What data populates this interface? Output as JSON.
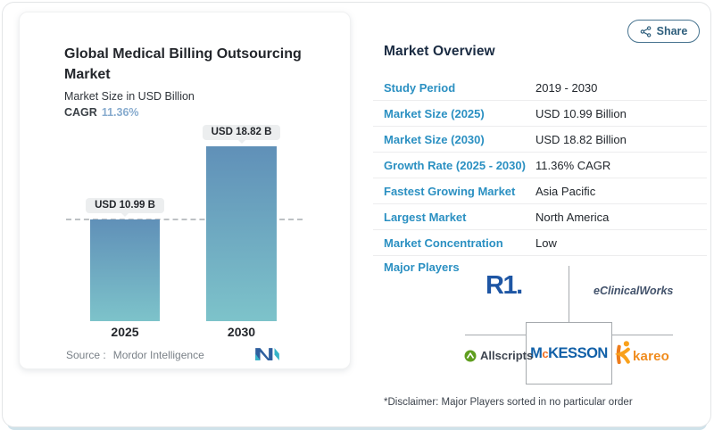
{
  "header": {
    "share_label": "Share"
  },
  "chart_card": {
    "title": "Global Medical Billing Outsourcing Market",
    "subtitle": "Market Size in USD Billion",
    "cagr_label": "CAGR",
    "source_label": "Source :",
    "source_name": "Mordor Intelligence"
  },
  "chart_data": {
    "type": "bar",
    "title": "Global Medical Billing Outsourcing Market",
    "ylabel": "Market Size in USD Billion",
    "cagr": "11.36%",
    "categories": [
      "2025",
      "2030"
    ],
    "values": [
      10.99,
      18.82
    ],
    "value_labels": [
      "USD 10.99 B",
      "USD 18.82 B"
    ],
    "reference_line": 10.99,
    "bar_color_top": "#6090b8",
    "bar_color_bottom": "#7dc3ca",
    "grid": "off",
    "legend": "none"
  },
  "overview": {
    "heading": "Market Overview",
    "rows": [
      {
        "label": "Study Period",
        "value": "2019 - 2030"
      },
      {
        "label": "Market Size (2025)",
        "value": "USD 10.99 Billion"
      },
      {
        "label": "Market Size (2030)",
        "value": "USD 18.82 Billion"
      },
      {
        "label": "Growth Rate (2025 - 2030)",
        "value": "11.36% CAGR"
      },
      {
        "label": "Fastest Growing Market",
        "value": "Asia Pacific"
      },
      {
        "label": "Largest Market",
        "value": "North America"
      },
      {
        "label": "Market Concentration",
        "value": "Low"
      }
    ],
    "major_players": {
      "label": "Major Players",
      "players": [
        "R1",
        "eClinicalWorks",
        "Allscripts",
        "McKesson",
        "Kareo"
      ],
      "logo_text": {
        "r1": "R1.",
        "eclinicalworks": "eClinicalWorks",
        "allscripts": "Allscripts",
        "mckesson_m": "M",
        "mckesson_c": "c",
        "mckesson_rest": "KESSON",
        "kareo": "kareo"
      },
      "disclaimer": "*Disclaimer: Major Players sorted in no particular order"
    }
  },
  "colors": {
    "link_blue": "#2b90c2",
    "heading_navy": "#1a2b42",
    "cagr_blue": "#87abce",
    "share_teal": "#2e5e7c",
    "mckesson_blue": "#1160a8",
    "mckesson_orange": "#f26f21",
    "kareo_orange": "#f08c1e",
    "r1_blue": "#1e56a4",
    "allscripts_green": "#5f9e1f"
  }
}
